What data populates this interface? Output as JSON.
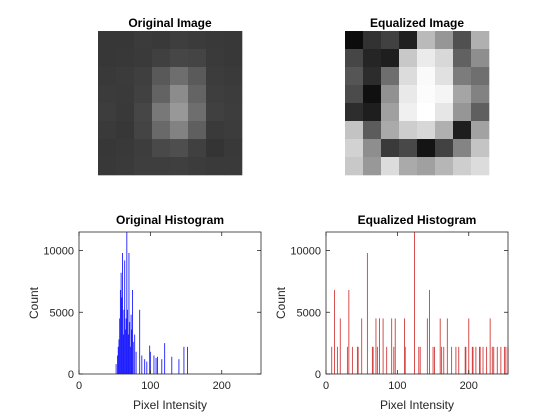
{
  "figure": {
    "colors": {
      "original_hist": "#1f1fff",
      "equalized_hist": "#d23c3c",
      "axis": "#262626"
    }
  },
  "chart_data": [
    {
      "type": "heatmap",
      "title": "Original Image",
      "colormap": "gray",
      "rows": 8,
      "cols": 8,
      "values": [
        [
          55,
          55,
          59,
          57,
          62,
          59,
          57,
          56
        ],
        [
          55,
          56,
          58,
          64,
          70,
          68,
          58,
          56
        ],
        [
          57,
          59,
          63,
          89,
          110,
          90,
          60,
          58
        ],
        [
          59,
          58,
          65,
          99,
          140,
          100,
          62,
          60
        ],
        [
          61,
          57,
          70,
          120,
          152,
          110,
          64,
          61
        ],
        [
          58,
          55,
          68,
          105,
          130,
          95,
          58,
          60
        ],
        [
          55,
          57,
          61,
          73,
          78,
          64,
          52,
          57
        ],
        [
          56,
          58,
          62,
          62,
          63,
          60,
          58,
          58
        ]
      ]
    },
    {
      "type": "heatmap",
      "title": "Equalized Image",
      "colormap": "gray",
      "rows": 8,
      "cols": 8,
      "values": [
        [
          12,
          50,
          65,
          32,
          186,
          150,
          80,
          176
        ],
        [
          70,
          37,
          30,
          200,
          235,
          216,
          97,
          142
        ],
        [
          85,
          44,
          110,
          220,
          250,
          225,
          124,
          111
        ],
        [
          75,
          16,
          145,
          233,
          252,
          245,
          165,
          130
        ],
        [
          45,
          30,
          160,
          240,
          255,
          230,
          150,
          95
        ],
        [
          195,
          92,
          170,
          205,
          215,
          176,
          30,
          162
        ],
        [
          210,
          142,
          58,
          72,
          20,
          66,
          132,
          196
        ],
        [
          200,
          152,
          220,
          170,
          160,
          182,
          206,
          220
        ]
      ]
    },
    {
      "type": "bar",
      "title": "Original Histogram",
      "xlabel": "Pixel Intensity",
      "ylabel": "Count",
      "xlim": [
        0,
        255
      ],
      "ylim": [
        0,
        11500
      ],
      "xticks": [
        0,
        100,
        200
      ],
      "yticks": [
        0,
        5000,
        10000
      ],
      "color": "#1f1fff",
      "x": [
        52,
        54,
        55,
        56,
        57,
        58,
        59,
        60,
        61,
        62,
        63,
        64,
        65,
        66,
        67,
        68,
        69,
        70,
        71,
        72,
        73,
        74,
        75,
        76,
        78,
        80,
        85,
        88,
        92,
        95,
        99,
        100,
        105,
        108,
        110,
        116,
        120,
        130,
        140,
        147,
        152
      ],
      "values": [
        800,
        1500,
        2200,
        2800,
        4500,
        6800,
        8200,
        6200,
        9800,
        3200,
        5200,
        9200,
        3600,
        4500,
        11500,
        5200,
        3200,
        9800,
        4200,
        2200,
        4800,
        3600,
        6800,
        2600,
        3200,
        1800,
        5200,
        1500,
        1200,
        1000,
        2300,
        1800,
        1500,
        1300,
        1400,
        1200,
        2500,
        1400,
        1200,
        2200,
        2200
      ]
    },
    {
      "type": "bar",
      "title": "Equalized Histogram",
      "xlabel": "Pixel Intensity",
      "ylabel": "Count",
      "xlim": [
        0,
        255
      ],
      "ylim": [
        0,
        11500
      ],
      "xticks": [
        0,
        100,
        200
      ],
      "yticks": [
        0,
        5000,
        10000
      ],
      "color": "#d23c3c",
      "x": [
        8,
        12,
        16,
        20,
        30,
        32,
        37,
        44,
        45,
        50,
        58,
        65,
        66,
        70,
        72,
        75,
        80,
        85,
        92,
        95,
        97,
        110,
        111,
        124,
        130,
        132,
        142,
        145,
        150,
        152,
        160,
        162,
        165,
        170,
        176,
        182,
        186,
        195,
        196,
        200,
        205,
        206,
        210,
        215,
        216,
        220,
        225,
        230,
        233,
        235,
        240,
        245,
        250,
        252,
        255
      ],
      "values": [
        2200,
        6800,
        2200,
        4500,
        2200,
        6800,
        2200,
        2200,
        2200,
        4500,
        9800,
        2200,
        2200,
        4500,
        2200,
        4500,
        4500,
        2200,
        4500,
        2200,
        4500,
        4500,
        2200,
        11500,
        2200,
        2200,
        4500,
        6800,
        2200,
        2200,
        4500,
        2200,
        2200,
        4500,
        2200,
        2200,
        2200,
        2200,
        2200,
        4500,
        2200,
        2200,
        2200,
        2200,
        2200,
        2200,
        2200,
        4500,
        2200,
        2200,
        2200,
        2200,
        2200,
        2200,
        2200
      ]
    }
  ]
}
